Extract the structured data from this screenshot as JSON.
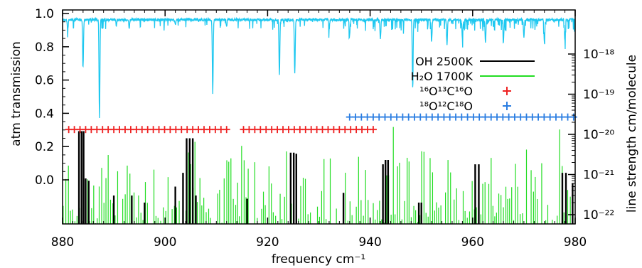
{
  "chart_data": {
    "type": "line",
    "xlabel": "frequency cm⁻¹",
    "ylabel_left": "atm transmission",
    "ylabel_right": "line strength cm/molecule",
    "xlim": [
      880,
      980
    ],
    "x_ticks": [
      "880",
      "900",
      "920",
      "940",
      "960",
      "980"
    ],
    "y_left_ticks": [
      "1.0",
      "0.8",
      "0.6",
      "0.4",
      "0.2",
      "0.0"
    ],
    "y_right_ticks": [
      "10⁻¹⁸",
      "10⁻¹⁹",
      "10⁻²⁰",
      "10⁻²¹",
      "10⁻²²"
    ],
    "transmission": {
      "color": "#1ec8f0",
      "baseline": 0.97,
      "dips": [
        [
          881,
          0.9
        ],
        [
          884.0,
          0.69
        ],
        [
          887.2,
          0.38
        ],
        [
          890.5,
          0.93
        ],
        [
          893.0,
          0.92
        ],
        [
          902.0,
          0.94
        ],
        [
          909.3,
          0.53
        ],
        [
          912.0,
          0.93
        ],
        [
          922.3,
          0.64
        ],
        [
          925.3,
          0.65
        ],
        [
          932.0,
          0.91
        ],
        [
          936.0,
          0.88
        ],
        [
          942.0,
          0.86
        ],
        [
          948.3,
          0.58
        ],
        [
          952.0,
          0.84
        ],
        [
          955.0,
          0.82
        ],
        [
          958.0,
          0.85
        ],
        [
          962.5,
          0.83
        ],
        [
          966.0,
          0.84
        ],
        [
          970.0,
          0.86
        ],
        [
          974.0,
          0.83
        ],
        [
          978.0,
          0.84
        ]
      ]
    },
    "series": [
      {
        "name": "OH  2500K",
        "color": "#000000",
        "lines": [
          [
            883.2,
            1.2e-20
          ],
          [
            883.7,
            1.2e-20
          ],
          [
            884.1,
            1.2e-20
          ],
          [
            884.5,
            8e-22
          ],
          [
            885.1,
            7e-22
          ],
          [
            890.0,
            3e-22
          ],
          [
            893.5,
            3e-22
          ],
          [
            896.0,
            2e-22
          ],
          [
            902.0,
            5e-22
          ],
          [
            903.5,
            1.1e-21
          ],
          [
            904.2,
            8e-21
          ],
          [
            904.8,
            8e-21
          ],
          [
            905.4,
            8e-21
          ],
          [
            906.0,
            3e-22
          ],
          [
            916.0,
            2.5e-22
          ],
          [
            924.5,
            3.5e-21
          ],
          [
            925.1,
            3.5e-21
          ],
          [
            925.6,
            3.3e-21
          ],
          [
            934.8,
            3.5e-22
          ],
          [
            942.5,
            1.8e-21
          ],
          [
            943.0,
            2.3e-21
          ],
          [
            943.5,
            2.3e-21
          ],
          [
            949.5,
            2e-22
          ],
          [
            950.0,
            2e-22
          ],
          [
            960.5,
            1.8e-21
          ],
          [
            961.2,
            1.8e-21
          ],
          [
            977.5,
            1.1e-21
          ],
          [
            978.2,
            1.1e-21
          ],
          [
            979.5,
            6e-22
          ]
        ]
      },
      {
        "name": "H₂O  1700K",
        "color": "#22dd22",
        "lines": []
      },
      {
        "name": "¹⁶O¹³C¹⁶O",
        "color": "#ee2222",
        "marker": "+",
        "level": 1.32e-20,
        "start": 881.2,
        "spacing": 1.1,
        "segments": [
          [
            881,
            913
          ],
          [
            914.5,
            941
          ]
        ]
      },
      {
        "name": "¹⁸O¹²C¹⁸O",
        "color": "#2a7de1",
        "marker": "+",
        "level": 2.7e-20,
        "start": 936.0,
        "spacing": 1.15,
        "segments": [
          [
            936,
            980
          ]
        ]
      }
    ],
    "legend_position": "right"
  }
}
